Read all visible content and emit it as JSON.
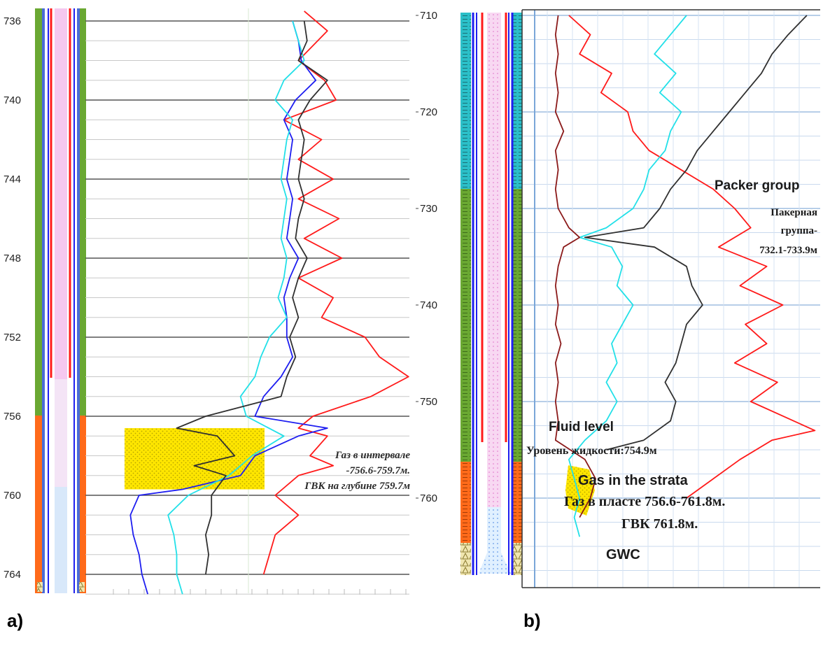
{
  "panel_a": {
    "label": "a)",
    "annotation_lines": [
      "Газ в интервале",
      "-756.6-759.7м.",
      "ГВК на глубине 759.7м"
    ]
  },
  "panel_b": {
    "label": "b)",
    "annotations": {
      "packer_en": "Packer group",
      "packer_ru_1": "Пакерная",
      "packer_ru_2": "группа-",
      "packer_ru_3": "732.1-733.9м",
      "fluid_en": "Fluid level",
      "fluid_ru": "Уровень жидкости:754.9м",
      "gas_en": "Gas in the strata",
      "gas_ru": "Газ в пласте 756.6-761.8м.",
      "gwc_ru": "ГВК 761.8м.",
      "gwc_en": "GWC"
    }
  },
  "colors": {
    "red": "#ff1a1a",
    "blue": "#1e1ef0",
    "cyan": "#22e0e8",
    "black": "#303030",
    "darkred": "#8b1a1a",
    "green": "#6aa832",
    "orange": "#ff6a1a",
    "gas_fill": "#ffe600",
    "teal": "#2bbfc8",
    "pink": "#f5c8f0",
    "grid": "#c9d9ee"
  },
  "chart_data": [
    {
      "type": "line",
      "panel": "a",
      "ylabel": "",
      "xlabel": "",
      "y_axis": "depth (m), increasing downward",
      "ylim": [
        735.5,
        765
      ],
      "y_ticks": [
        736,
        740,
        744,
        748,
        752,
        756,
        760,
        764
      ],
      "x_axis": "unlabeled log scale, relative units 0-100",
      "xlim": [
        0,
        100
      ],
      "highlight_interval": {
        "from": 756.6,
        "to": 759.7,
        "fill": "#ffe600"
      },
      "series": [
        {
          "color": "#ff1a1a",
          "depth": [
            735.5,
            736.5,
            738,
            739,
            740,
            741,
            742,
            743,
            744,
            745,
            746,
            747,
            748,
            749,
            750,
            751,
            752,
            753,
            754,
            755,
            756,
            756.6,
            757,
            758,
            758.5,
            759,
            760,
            761,
            762,
            763,
            764
          ],
          "values": [
            62,
            70,
            60,
            69,
            73,
            55,
            68,
            60,
            72,
            60,
            74,
            62,
            75,
            60,
            72,
            68,
            83,
            88,
            98,
            85,
            65,
            60,
            70,
            64,
            72,
            60,
            52,
            60,
            52,
            50,
            48
          ]
        },
        {
          "color": "#1e1ef0",
          "depth": [
            736,
            737,
            738,
            739,
            740,
            741,
            742,
            743,
            744,
            745,
            746,
            747,
            748,
            749,
            750,
            751,
            752,
            753,
            754,
            755,
            756,
            756.6,
            757,
            758,
            759,
            759.7,
            760,
            761,
            762,
            763,
            764,
            765
          ],
          "values": [
            58,
            60,
            61,
            66,
            59,
            55,
            58,
            57,
            56,
            58,
            57,
            56,
            60,
            57,
            55,
            56,
            56,
            58,
            54,
            48,
            45,
            70,
            60,
            45,
            40,
            20,
            5,
            2,
            3,
            5,
            6,
            8
          ]
        },
        {
          "color": "#22e0e8",
          "depth": [
            736,
            737,
            738,
            739,
            740,
            741,
            742,
            743,
            744,
            745,
            746,
            747,
            748,
            749,
            750,
            751,
            752,
            753,
            754,
            755,
            756,
            757,
            758,
            759,
            760,
            761,
            762,
            763,
            764,
            765
          ],
          "values": [
            58,
            60,
            62,
            55,
            52,
            58,
            56,
            55,
            54,
            56,
            55,
            54,
            56,
            55,
            53,
            56,
            50,
            47,
            45,
            40,
            42,
            55,
            44,
            36,
            22,
            15,
            17,
            18,
            18,
            20
          ]
        },
        {
          "color": "#303030",
          "depth": [
            736,
            737,
            738,
            739,
            740,
            741,
            742,
            743,
            744,
            745,
            746,
            747,
            748,
            749,
            750,
            751,
            752,
            753,
            754,
            755,
            756,
            756.6,
            757,
            758,
            758.5,
            759,
            760,
            761,
            762,
            763,
            764
          ],
          "values": [
            62,
            63,
            60,
            70,
            64,
            60,
            62,
            61,
            60,
            62,
            60,
            59,
            63,
            60,
            58,
            60,
            57,
            59,
            56,
            54,
            28,
            18,
            32,
            38,
            24,
            35,
            30,
            30,
            28,
            29,
            28
          ]
        }
      ]
    },
    {
      "type": "line",
      "panel": "b",
      "ylabel": "",
      "xlabel": "",
      "y_axis": "depth (m), increasing downward",
      "ylim": [
        709.5,
        768
      ],
      "y_ticks": [
        710,
        720,
        730,
        740,
        750,
        760
      ],
      "x_axis": "unlabeled log scale, relative units 0-100",
      "xlim": [
        0,
        100
      ],
      "highlight_interval": {
        "from": 756.6,
        "to": 761.8,
        "fill": "#ffe600"
      },
      "series": [
        {
          "color": "#ff1a1a",
          "depth": [
            710,
            712,
            714,
            716,
            718,
            720,
            722,
            724,
            726,
            728,
            730,
            732,
            734,
            736,
            738,
            740,
            742,
            744,
            746,
            748,
            750,
            752,
            753,
            754,
            756,
            758,
            760
          ],
          "values": [
            6,
            14,
            10,
            22,
            18,
            28,
            30,
            36,
            48,
            60,
            68,
            74,
            62,
            80,
            70,
            86,
            72,
            80,
            68,
            84,
            74,
            90,
            98,
            82,
            70,
            60,
            50
          ]
        },
        {
          "color": "#22e0e8",
          "depth": [
            710,
            712,
            714,
            716,
            718,
            720,
            722,
            724,
            726,
            728,
            730,
            732,
            733,
            734,
            736,
            738,
            740,
            742,
            744,
            746,
            748,
            750,
            752,
            754,
            756,
            758,
            760,
            762,
            764
          ],
          "values": [
            50,
            44,
            38,
            46,
            40,
            48,
            44,
            42,
            36,
            34,
            30,
            20,
            10,
            22,
            26,
            24,
            30,
            26,
            22,
            24,
            20,
            24,
            20,
            12,
            6,
            8,
            10,
            8,
            10
          ]
        },
        {
          "color": "#303030",
          "depth": [
            710,
            712,
            714,
            716,
            718,
            720,
            722,
            724,
            726,
            728,
            730,
            732,
            733,
            734,
            736,
            738,
            740,
            742,
            744,
            746,
            748,
            750,
            752,
            754,
            755
          ],
          "values": [
            95,
            88,
            82,
            78,
            72,
            66,
            60,
            54,
            50,
            44,
            40,
            34,
            12,
            38,
            50,
            52,
            56,
            50,
            48,
            46,
            42,
            46,
            44,
            34,
            20
          ]
        },
        {
          "color": "#8b1a1a",
          "depth": [
            710,
            712,
            714,
            716,
            718,
            720,
            722,
            724,
            726,
            728,
            730,
            732,
            733,
            734,
            736,
            738,
            740,
            742,
            744,
            746,
            748,
            750,
            752,
            754,
            756,
            758,
            760,
            762
          ],
          "values": [
            2,
            1,
            2,
            1,
            2,
            1,
            4,
            1,
            2,
            1,
            2,
            6,
            10,
            4,
            2,
            1,
            2,
            1,
            3,
            1,
            2,
            1,
            2,
            1,
            12,
            16,
            14,
            10
          ]
        }
      ]
    }
  ]
}
